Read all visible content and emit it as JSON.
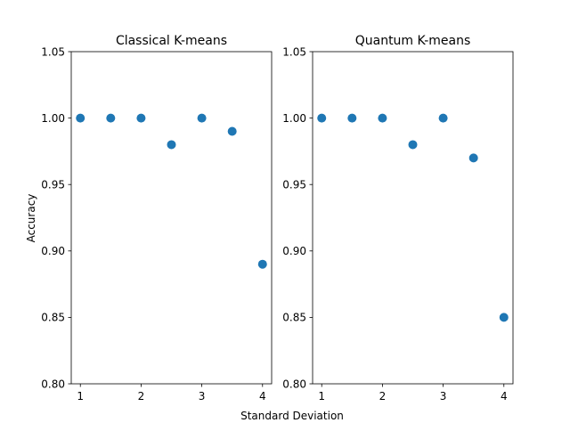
{
  "figure": {
    "xlabel": "Standard Deviation",
    "ylabel": "Accuracy"
  },
  "chart_data": [
    {
      "type": "scatter",
      "title": "Classical K-means",
      "x": [
        1,
        1.5,
        2,
        2.5,
        3,
        3.5,
        4
      ],
      "y": [
        1.0,
        1.0,
        1.0,
        0.98,
        1.0,
        0.99,
        0.89
      ],
      "xlim": [
        0.85,
        4.15
      ],
      "ylim": [
        0.8,
        1.05
      ],
      "xticks": [
        1,
        2,
        3,
        4
      ],
      "yticks": [
        "0.80",
        "0.85",
        "0.90",
        "0.95",
        "1.00",
        "1.05"
      ],
      "color": "#1f77b4",
      "grid": false
    },
    {
      "type": "scatter",
      "title": "Quantum K-means",
      "x": [
        1,
        1.5,
        2,
        2.5,
        3,
        3.5,
        4
      ],
      "y": [
        1.0,
        1.0,
        1.0,
        0.98,
        1.0,
        0.97,
        0.85
      ],
      "xlim": [
        0.85,
        4.15
      ],
      "ylim": [
        0.8,
        1.05
      ],
      "xticks": [
        1,
        2,
        3,
        4
      ],
      "yticks": [
        "0.80",
        "0.85",
        "0.90",
        "0.95",
        "1.00",
        "1.05"
      ],
      "color": "#1f77b4",
      "grid": false
    }
  ]
}
